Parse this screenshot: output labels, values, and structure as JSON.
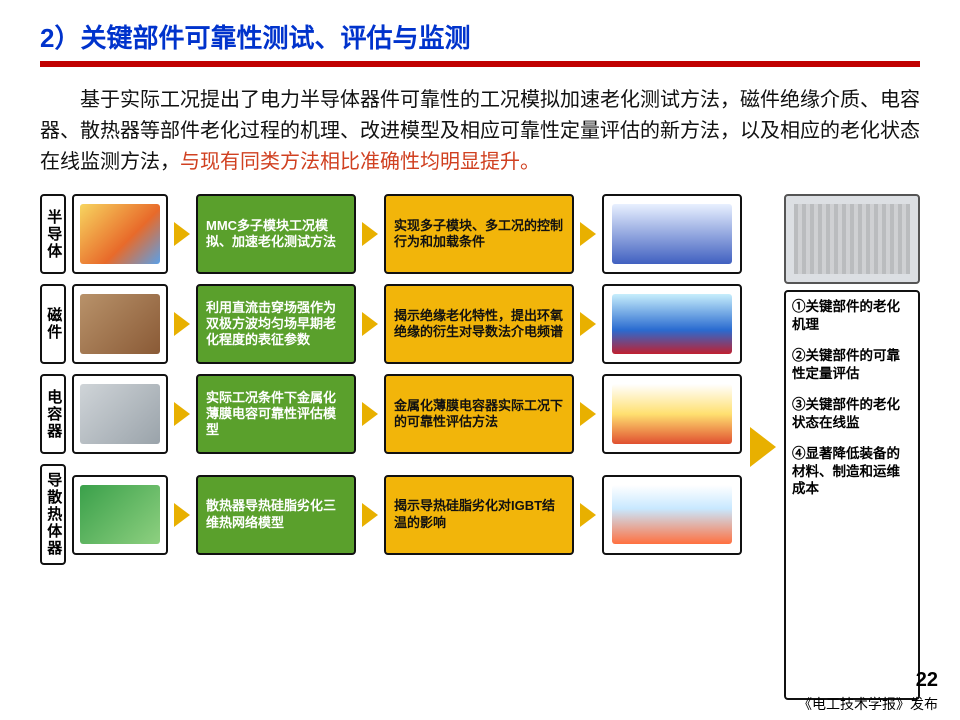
{
  "title": "2）关键部件可靠性测试、评估与监测",
  "paragraph_plain": "基于实际工况提出了电力半导体器件可靠性的工况模拟加速老化测试方法，磁件绝缘介质、电容器、散热器等部件老化过程的机理、改进模型及相应可靠性定量评估的新方法，以及相应的老化状态在线监测方法，",
  "paragraph_highlight": "与现有同类方法相比准确性均明显提升。",
  "colors": {
    "title": "#0033cc",
    "bar": "#c00000",
    "highlight": "#d04020",
    "green_box": "#5aa02c",
    "yellow_box": "#f2b50a",
    "arrow": "#e8b000"
  },
  "rows": [
    {
      "label": "半导体",
      "green": "MMC多子模块工况模拟、加速老化测试方法",
      "yellow": "实现多子模块、多工况的控制行为和加载条件",
      "img1_class": "g1",
      "img2_class": "g8"
    },
    {
      "label": "磁件",
      "green": "利用直流击穿场强作为双极方波均匀场早期老化程度的表征参数",
      "yellow": "揭示绝缘老化特性，提出环氧绝缘的衍生对导数法介电频谱",
      "img1_class": "g2",
      "img2_class": "g5"
    },
    {
      "label": "电容器",
      "green": "实际工况条件下金属化薄膜电容可靠性评估模型",
      "yellow": "金属化薄膜电容器实际工况下的可靠性评估方法",
      "img1_class": "g3",
      "img2_class": "g6"
    },
    {
      "label": "导散热体器",
      "green": "散热器导热硅脂劣化三维热网络模型",
      "yellow": "揭示导热硅脂劣化对IGBT结温的影响",
      "img1_class": "g4",
      "img2_class": "g7"
    }
  ],
  "outcomes": [
    "①关键部件的老化机理",
    "②关键部件的可靠性定量评估",
    "③关键部件的老化状态在线监",
    "④显著降低装备的材料、制造和运维成本"
  ],
  "page_number": "22",
  "publisher": "《电工技术学报》发布"
}
